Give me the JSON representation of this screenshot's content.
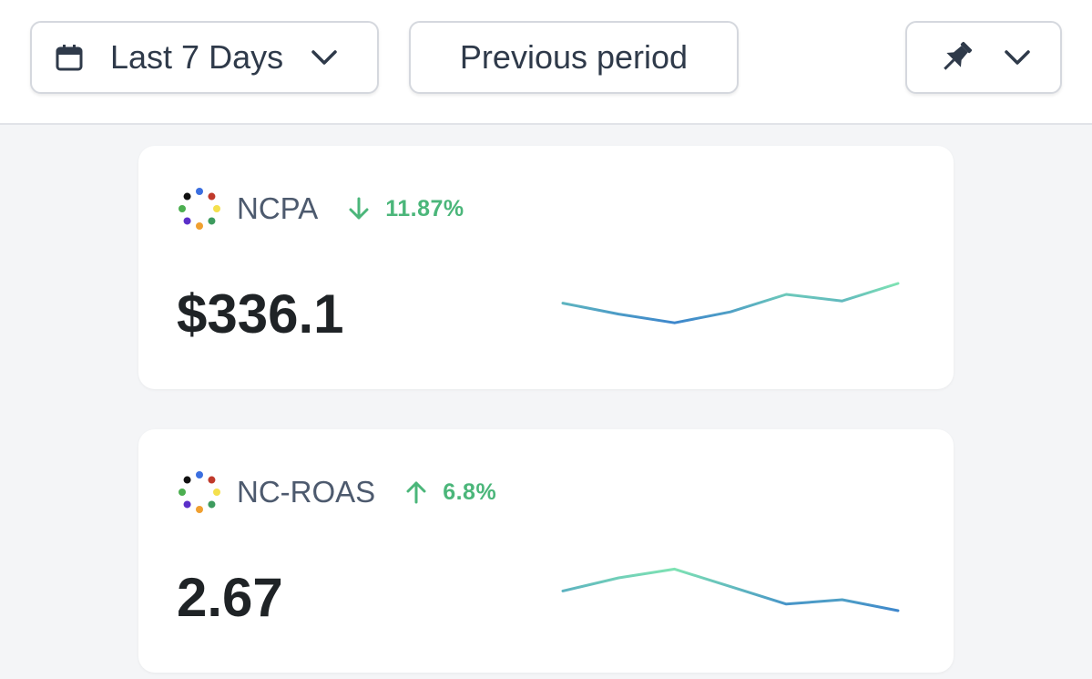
{
  "toolbar": {
    "date_range_label": "Last 7 Days",
    "compare_label": "Previous period"
  },
  "metrics": [
    {
      "name": "NCPA",
      "change": "11.87%",
      "direction": "down",
      "value": "$336.1",
      "spark": [
        0.55,
        0.3,
        0.1,
        0.35,
        0.75,
        0.6,
        1.0
      ]
    },
    {
      "name": "NC-ROAS",
      "change": "6.8%",
      "direction": "up",
      "value": "2.67",
      "spark": [
        0.45,
        0.75,
        0.95,
        0.55,
        0.15,
        0.25,
        0.0
      ]
    }
  ],
  "colors": {
    "positive": "#4bb67a",
    "spark_start": "#7fe3b3",
    "spark_end": "#3d86cc",
    "text_dark": "#1f2326",
    "text_muted": "#4d5a6e"
  },
  "logo_dot_colors": [
    "#3b6fe0",
    "#c0392b",
    "#f4e04d",
    "#3d9b5e",
    "#f0a030",
    "#5b2fc9",
    "#4caf50",
    "#111111"
  ]
}
